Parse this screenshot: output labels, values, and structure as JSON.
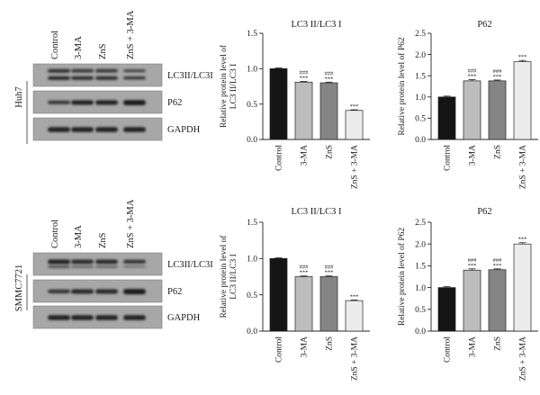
{
  "figure": {
    "rows": [
      {
        "cell_line": "Huh7",
        "blot": {
          "lanes": [
            "Control",
            "3-MA",
            "ZnS",
            "ZnS + 3-MA"
          ],
          "bands": [
            "LC3II/LC3I",
            "P62",
            "GAPDH"
          ]
        },
        "charts": [
          {
            "type": "bar",
            "title": "LC3 II/LC3 I",
            "ylabel": [
              "Relative protein level of",
              "LC3 II/LC3 I"
            ],
            "categories": [
              "Control",
              "3-MA",
              "ZnS",
              "ZnS + 3-MA"
            ],
            "values": [
              1.0,
              0.81,
              0.8,
              0.41
            ],
            "errors": [
              0.01,
              0.01,
              0.01,
              0.01
            ],
            "annotations": [
              [],
              [
                "###",
                "***"
              ],
              [
                "###",
                "***"
              ],
              [
                "***"
              ]
            ],
            "colors": [
              "#141414",
              "#bdbdbd",
              "#858585",
              "#ececec"
            ],
            "ylim": [
              0,
              1.5
            ],
            "yticks": [
              "0.0",
              "0.5",
              "1.0",
              "1.5"
            ]
          },
          {
            "type": "bar",
            "title": "P62",
            "ylabel": [
              "Relative protein level of P62"
            ],
            "categories": [
              "Control",
              "3-MA",
              "ZnS",
              "ZnS + 3-MA"
            ],
            "values": [
              1.0,
              1.38,
              1.38,
              1.83
            ],
            "errors": [
              0.02,
              0.03,
              0.02,
              0.03
            ],
            "annotations": [
              [],
              [
                "###",
                "***"
              ],
              [
                "###",
                "***"
              ],
              [
                "***"
              ]
            ],
            "colors": [
              "#141414",
              "#bdbdbd",
              "#858585",
              "#ececec"
            ],
            "ylim": [
              0,
              2.5
            ],
            "yticks": [
              "0.0",
              "0.5",
              "1.0",
              "1.5",
              "2.0",
              "2.5"
            ]
          }
        ]
      },
      {
        "cell_line": "SMMC7721",
        "blot": {
          "lanes": [
            "Control",
            "3-MA",
            "ZnS",
            "ZnS + 3-MA"
          ],
          "bands": [
            "LC3II/LC3I",
            "P62",
            "GAPDH"
          ]
        },
        "charts": [
          {
            "type": "bar",
            "title": "LC3 II/LC3 I",
            "ylabel": [
              "Relative protein level of",
              "LC3 II/LC3 I"
            ],
            "categories": [
              "Control",
              "3-MA",
              "ZnS",
              "ZnS + 3-MA"
            ],
            "values": [
              1.0,
              0.75,
              0.75,
              0.42
            ],
            "errors": [
              0.01,
              0.01,
              0.01,
              0.01
            ],
            "annotations": [
              [],
              [
                "###",
                "***"
              ],
              [
                "###",
                "***"
              ],
              [
                "***"
              ]
            ],
            "colors": [
              "#141414",
              "#bdbdbd",
              "#858585",
              "#ececec"
            ],
            "ylim": [
              0,
              1.5
            ],
            "yticks": [
              "0.0",
              "0.5",
              "1.0",
              "1.5"
            ]
          },
          {
            "type": "bar",
            "title": "P62",
            "ylabel": [
              "Relative protein level of P62"
            ],
            "categories": [
              "Control",
              "3-MA",
              "ZnS",
              "ZnS + 3-MA"
            ],
            "values": [
              1.0,
              1.4,
              1.41,
              2.0
            ],
            "errors": [
              0.02,
              0.03,
              0.02,
              0.03
            ],
            "annotations": [
              [],
              [
                "###",
                "***"
              ],
              [
                "###",
                "***"
              ],
              [
                "***"
              ]
            ],
            "colors": [
              "#141414",
              "#bdbdbd",
              "#858585",
              "#ececec"
            ],
            "ylim": [
              0,
              2.5
            ],
            "yticks": [
              "0.0",
              "0.5",
              "1.0",
              "1.5",
              "2.0",
              "2.5"
            ]
          }
        ]
      }
    ]
  },
  "chart_data": [
    {
      "type": "bar",
      "title": "LC3 II/LC3 I",
      "ylabel": "Relative protein level of LC3 II/LC3 I",
      "categories": [
        "Control",
        "3-MA",
        "ZnS",
        "ZnS + 3-MA"
      ],
      "values": [
        1.0,
        0.81,
        0.8,
        0.41
      ],
      "ylim": [
        0,
        1.5
      ]
    },
    {
      "type": "bar",
      "title": "P62",
      "ylabel": "Relative protein level of P62",
      "categories": [
        "Control",
        "3-MA",
        "ZnS",
        "ZnS + 3-MA"
      ],
      "values": [
        1.0,
        1.38,
        1.38,
        1.83
      ],
      "ylim": [
        0,
        2.5
      ]
    },
    {
      "type": "bar",
      "title": "LC3 II/LC3 I",
      "ylabel": "Relative protein level of LC3 II/LC3 I",
      "categories": [
        "Control",
        "3-MA",
        "ZnS",
        "ZnS + 3-MA"
      ],
      "values": [
        1.0,
        0.75,
        0.75,
        0.42
      ],
      "ylim": [
        0,
        1.5
      ]
    },
    {
      "type": "bar",
      "title": "P62",
      "ylabel": "Relative protein level of P62",
      "categories": [
        "Control",
        "3-MA",
        "ZnS",
        "ZnS + 3-MA"
      ],
      "values": [
        1.0,
        1.4,
        1.41,
        2.0
      ],
      "ylim": [
        0,
        2.5
      ]
    }
  ]
}
